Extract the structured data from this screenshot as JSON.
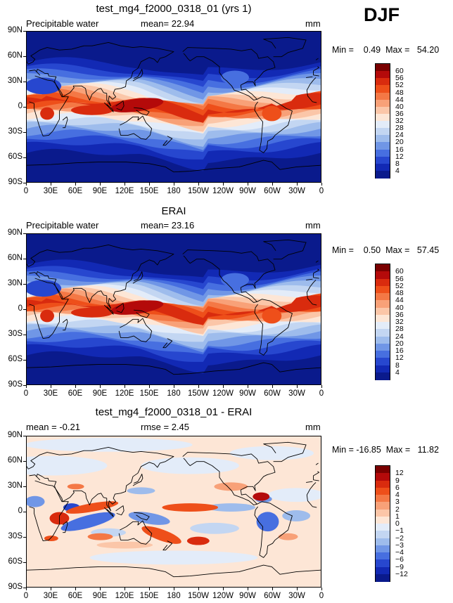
{
  "season": "DJF",
  "lat_labels": [
    "90N",
    "60N",
    "30N",
    "0",
    "30S",
    "60S",
    "90S"
  ],
  "lon_labels": [
    "0",
    "30E",
    "60E",
    "90E",
    "120E",
    "150E",
    "180",
    "150W",
    "120W",
    "90W",
    "60W",
    "30W",
    "0"
  ],
  "panels": [
    {
      "title": "test_mg4_f2000_0318_01 (yrs 1)",
      "left_label": "Precipitable water",
      "center_label": "mean=  22.94",
      "units": "mm",
      "minmax": "Min =    0.49  Max =   54.20",
      "kind": "abs",
      "levels": [
        "60",
        "56",
        "52",
        "48",
        "44",
        "40",
        "36",
        "32",
        "28",
        "24",
        "20",
        "16",
        "12",
        "8",
        "4"
      ],
      "colors": [
        "#7a0000",
        "#b40a0a",
        "#d92b0e",
        "#ee4f1a",
        "#f47845",
        "#f8a178",
        "#fbc6a8",
        "#fde6d6",
        "#e3ecf9",
        "#c3d6f2",
        "#9ebcec",
        "#7096e6",
        "#476fe0",
        "#2747cf",
        "#1229b4",
        "#0a1a8c"
      ]
    },
    {
      "title": "ERAI",
      "left_label": "Precipitable water",
      "center_label": "mean=  23.16",
      "units": "mm",
      "minmax": "Min =    0.50  Max =   57.45",
      "kind": "abs",
      "levels": [
        "60",
        "56",
        "52",
        "48",
        "44",
        "40",
        "36",
        "32",
        "28",
        "24",
        "20",
        "16",
        "12",
        "8",
        "4"
      ],
      "colors": [
        "#7a0000",
        "#b40a0a",
        "#d92b0e",
        "#ee4f1a",
        "#f47845",
        "#f8a178",
        "#fbc6a8",
        "#fde6d6",
        "#e3ecf9",
        "#c3d6f2",
        "#9ebcec",
        "#7096e6",
        "#476fe0",
        "#2747cf",
        "#1229b4",
        "#0a1a8c"
      ]
    },
    {
      "title": "test_mg4_f2000_0318_01 - ERAI",
      "left_label": "mean =   -0.21",
      "center_label": "rmse =    2.45",
      "units": "mm",
      "minmax": "Min = -16.85  Max =   11.82",
      "kind": "diff",
      "levels": [
        "12",
        "9",
        "6",
        "4",
        "3",
        "2",
        "1",
        "0",
        "−1",
        "−2",
        "−3",
        "−4",
        "−6",
        "−9",
        "−12"
      ],
      "colors": [
        "#7a0000",
        "#b40a0a",
        "#d92b0e",
        "#ee4f1a",
        "#f47845",
        "#f8a178",
        "#fbc6a8",
        "#fde6d6",
        "#e3ecf9",
        "#c3d6f2",
        "#9ebcec",
        "#7096e6",
        "#476fe0",
        "#2747cf",
        "#1229b4",
        "#0a1a8c"
      ]
    }
  ]
}
